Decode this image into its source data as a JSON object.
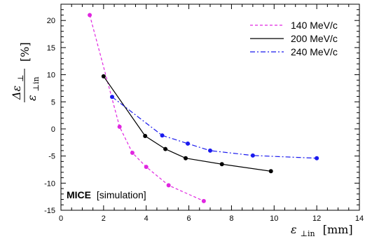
{
  "chart_data": {
    "type": "line",
    "xlabel": {
      "symbol": "ε",
      "sub": "⊥in",
      "unit": "[mm]"
    },
    "ylabel": {
      "num": "Δε",
      "num_sub": "⊥",
      "den": "ε",
      "den_sub": "⊥in",
      "unit": "[%]"
    },
    "xlim": [
      0,
      14
    ],
    "ylim": [
      -15,
      23
    ],
    "xticks": [
      0,
      2,
      4,
      6,
      8,
      10,
      12,
      14
    ],
    "yticks": [
      -15,
      -10,
      -5,
      0,
      5,
      10,
      15,
      20
    ],
    "legend_position": "top-right",
    "annotation": {
      "bold": "MICE",
      "rest": "[simulation]"
    },
    "series": [
      {
        "name": "140 MeV/c",
        "color": "#e026e0",
        "style": "dashed",
        "x": [
          1.35,
          2.75,
          3.35,
          4.0,
          5.05,
          6.7
        ],
        "y": [
          21.0,
          0.4,
          -4.4,
          -7.0,
          -10.4,
          -13.3
        ]
      },
      {
        "name": "200 MeV/c",
        "color": "#000000",
        "style": "solid",
        "x": [
          2.0,
          3.95,
          4.9,
          5.85,
          7.55,
          9.85
        ],
        "y": [
          9.7,
          -1.3,
          -3.7,
          -5.4,
          -6.5,
          -7.8
        ]
      },
      {
        "name": "240 MeV/c",
        "color": "#1a1aee",
        "style": "dashdot",
        "x": [
          2.4,
          4.75,
          5.95,
          7.0,
          9.0,
          12.0
        ],
        "y": [
          5.9,
          -1.2,
          -2.7,
          -4.0,
          -4.9,
          -5.4
        ]
      }
    ]
  }
}
